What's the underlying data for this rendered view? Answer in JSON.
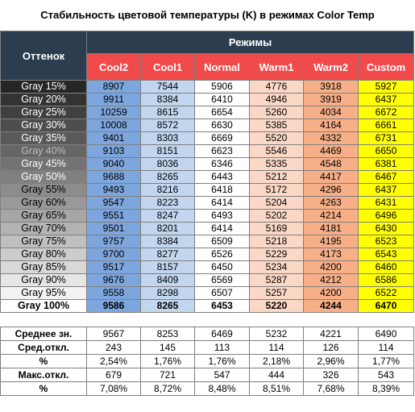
{
  "title": "Стабильность цветовой температуры (K) в режимах Color Temp",
  "header": {
    "shade": "Оттенок",
    "modes": "Режимы",
    "columns": [
      "Cool2",
      "Cool1",
      "Normal",
      "Warm1",
      "Warm2",
      "Custom"
    ]
  },
  "colors": {
    "header_dark": "#2b3d4f",
    "header_red": "#f04a4a",
    "cool2": "#7ea6de",
    "cool1": "#c2d6ef",
    "normal": "#ffffff",
    "warm1": "#fbd8c6",
    "warm2": "#f7af88",
    "custom": "#ffff00"
  },
  "rows": [
    {
      "label": "Gray 15%",
      "values": [
        "8907",
        "7544",
        "5906",
        "4776",
        "3918",
        "5927"
      ],
      "bg": "#262626",
      "fg": "#ffffff"
    },
    {
      "label": "Gray 20%",
      "values": [
        "9911",
        "8384",
        "6410",
        "4946",
        "3919",
        "6437"
      ],
      "bg": "#333333",
      "fg": "#ffffff"
    },
    {
      "label": "Gray 25%",
      "values": [
        "10259",
        "8615",
        "6654",
        "5260",
        "4034",
        "6672"
      ],
      "bg": "#404040",
      "fg": "#ffffff"
    },
    {
      "label": "Gray 30%",
      "values": [
        "10008",
        "8572",
        "6630",
        "5385",
        "4164",
        "6661"
      ],
      "bg": "#4d4d4d",
      "fg": "#ffffff"
    },
    {
      "label": "Gray 35%",
      "values": [
        "9401",
        "8303",
        "6669",
        "5520",
        "4332",
        "6731"
      ],
      "bg": "#595959",
      "fg": "#ffffff"
    },
    {
      "label": "Gray 40%",
      "values": [
        "9103",
        "8151",
        "6623",
        "5546",
        "4469",
        "6650"
      ],
      "bg": "#666666",
      "fg": "#bdbdbd"
    },
    {
      "label": "Gray 45%",
      "values": [
        "9040",
        "8036",
        "6346",
        "5335",
        "4548",
        "6381"
      ],
      "bg": "#737373",
      "fg": "#ffffff"
    },
    {
      "label": "Gray 50%",
      "values": [
        "9688",
        "8265",
        "6443",
        "5212",
        "4417",
        "6467"
      ],
      "bg": "#808080",
      "fg": "#ffffff"
    },
    {
      "label": "Gray 55%",
      "values": [
        "9493",
        "8216",
        "6418",
        "5172",
        "4296",
        "6437"
      ],
      "bg": "#8c8c8c",
      "fg": "#000000"
    },
    {
      "label": "Gray 60%",
      "values": [
        "9547",
        "8223",
        "6414",
        "5204",
        "4263",
        "6431"
      ],
      "bg": "#999999",
      "fg": "#000000"
    },
    {
      "label": "Gray 65%",
      "values": [
        "9551",
        "8247",
        "6493",
        "5202",
        "4214",
        "6496"
      ],
      "bg": "#a6a6a6",
      "fg": "#000000"
    },
    {
      "label": "Gray 70%",
      "values": [
        "9501",
        "8201",
        "6414",
        "5169",
        "4181",
        "6430"
      ],
      "bg": "#b3b3b3",
      "fg": "#000000"
    },
    {
      "label": "Gray 75%",
      "values": [
        "9757",
        "8384",
        "6509",
        "5218",
        "4195",
        "6523"
      ],
      "bg": "#bfbfbf",
      "fg": "#000000"
    },
    {
      "label": "Gray 80%",
      "values": [
        "9700",
        "8277",
        "6526",
        "5229",
        "4173",
        "6543"
      ],
      "bg": "#cccccc",
      "fg": "#000000"
    },
    {
      "label": "Gray 85%",
      "values": [
        "9517",
        "8157",
        "6450",
        "5234",
        "4200",
        "6460"
      ],
      "bg": "#d9d9d9",
      "fg": "#000000"
    },
    {
      "label": "Gray 90%",
      "values": [
        "9676",
        "8409",
        "6569",
        "5287",
        "4212",
        "6586"
      ],
      "bg": "#e6e6e6",
      "fg": "#000000"
    },
    {
      "label": "Gray 95%",
      "values": [
        "9558",
        "8298",
        "6507",
        "5257",
        "4200",
        "6522"
      ],
      "bg": "#f2f2f2",
      "fg": "#000000"
    },
    {
      "label": "Gray 100%",
      "values": [
        "9586",
        "8265",
        "6453",
        "5220",
        "4244",
        "6470"
      ],
      "bg": "#ffffff",
      "fg": "#000000",
      "bold": true
    }
  ],
  "summary": [
    {
      "label": "Среднее зн.",
      "values": [
        "9567",
        "8253",
        "6469",
        "5232",
        "4221",
        "6490"
      ]
    },
    {
      "label": "Сред.откл.",
      "values": [
        "243",
        "145",
        "113",
        "114",
        "126",
        "114"
      ]
    },
    {
      "label": "%",
      "values": [
        "2,54%",
        "1,76%",
        "1,76%",
        "2,18%",
        "2,96%",
        "1,77%"
      ]
    },
    {
      "label": "Макс.откл.",
      "values": [
        "679",
        "721",
        "547",
        "444",
        "326",
        "543"
      ]
    },
    {
      "label": "%",
      "values": [
        "7,08%",
        "8,72%",
        "8,48%",
        "8,51%",
        "7,68%",
        "8,39%"
      ]
    }
  ]
}
